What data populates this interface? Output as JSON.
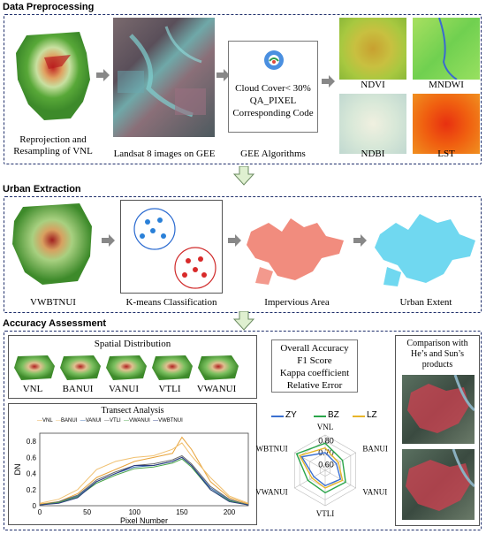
{
  "sections": {
    "preprocessing": "Data Preprocessing",
    "extraction": "Urban Extraction",
    "accuracy": "Accuracy Assessment"
  },
  "preprocessing": {
    "vnl_caption_1": "Reprojection and",
    "vnl_caption_2": "Resampling of VNL",
    "landsat_caption": "Landsat 8 images on GEE",
    "gee_caption": "GEE Algorithms",
    "gee_lines": [
      "Cloud Cover< 30%",
      "QA_PIXEL",
      "Corresponding Code"
    ],
    "indices": [
      "NDVI",
      "MNDWI",
      "NDBI",
      "LST"
    ]
  },
  "extraction": {
    "captions": [
      "VWBTNUI",
      "K-means Classification",
      "Impervious Area",
      "Urban Extent"
    ]
  },
  "accuracy": {
    "spatial_title": "Spatial Distribution",
    "spatial_labels": [
      "VNL",
      "BANUI",
      "VANUI",
      "VTLI",
      "VWANUI"
    ],
    "metrics": [
      "Overall  Accuracy",
      "F1 Score",
      "Kappa coefficient",
      "Relative Error"
    ],
    "comparison_title": [
      "Comparison with",
      "He’s and Sun’s",
      "products"
    ],
    "transect": {
      "title": "Transect Analysis",
      "ylabel": "DN",
      "xlabel": "Pixel Number",
      "legend": [
        "VNL",
        "BANUI",
        "VANUI",
        "VTLI",
        "VWANUI",
        "VWBTNUI"
      ],
      "xticks": [
        "0",
        "50",
        "100",
        "150",
        "200"
      ],
      "yticks": [
        "0",
        "0.2",
        "0.4",
        "0.6",
        "0.8"
      ]
    },
    "radar": {
      "legend": [
        "ZY",
        "BZ",
        "LZ"
      ],
      "axes": [
        "VNL",
        "BANUI",
        "VANUI",
        "VTLI",
        "VWANUI",
        "VWBTNUI"
      ],
      "rings": [
        "0.80",
        "0.70",
        "0.60"
      ]
    }
  },
  "chart_data": [
    {
      "type": "line",
      "title": "Transect Analysis",
      "xlabel": "Pixel Number",
      "ylabel": "DN",
      "xlim": [
        0,
        220
      ],
      "ylim": [
        0,
        0.9
      ],
      "x": [
        0,
        20,
        40,
        60,
        80,
        100,
        120,
        140,
        150,
        160,
        180,
        200,
        220
      ],
      "series": [
        {
          "name": "VNL",
          "values": [
            0.02,
            0.05,
            0.15,
            0.35,
            0.45,
            0.55,
            0.6,
            0.65,
            0.85,
            0.7,
            0.3,
            0.1,
            0.02
          ]
        },
        {
          "name": "BANUI",
          "values": [
            0.03,
            0.08,
            0.2,
            0.45,
            0.55,
            0.6,
            0.62,
            0.7,
            0.78,
            0.62,
            0.35,
            0.12,
            0.03
          ]
        },
        {
          "name": "VANUI",
          "values": [
            0.01,
            0.04,
            0.12,
            0.3,
            0.4,
            0.48,
            0.5,
            0.55,
            0.6,
            0.5,
            0.22,
            0.07,
            0.01
          ]
        },
        {
          "name": "VTLI",
          "values": [
            0.01,
            0.05,
            0.13,
            0.32,
            0.42,
            0.5,
            0.52,
            0.57,
            0.62,
            0.52,
            0.24,
            0.08,
            0.01
          ]
        },
        {
          "name": "VWANUI",
          "values": [
            0.01,
            0.04,
            0.11,
            0.28,
            0.38,
            0.46,
            0.48,
            0.53,
            0.58,
            0.48,
            0.2,
            0.06,
            0.01
          ]
        },
        {
          "name": "VWBTNUI",
          "values": [
            0.01,
            0.03,
            0.1,
            0.3,
            0.4,
            0.5,
            0.5,
            0.55,
            0.6,
            0.5,
            0.2,
            0.05,
            0.01
          ]
        }
      ],
      "colors": [
        "#e8a33a",
        "#f0c070",
        "#3a6fb5",
        "#6a6a6a",
        "#4aa54a",
        "#2a3a80"
      ]
    },
    {
      "type": "radar",
      "axes": [
        "VNL",
        "BANUI",
        "VANUI",
        "VTLI",
        "VWANUI",
        "VWBTNUI"
      ],
      "rmin": 0.55,
      "rmax": 0.85,
      "rings": [
        0.6,
        0.7,
        0.8
      ],
      "series": [
        {
          "name": "ZY",
          "values": [
            0.7,
            0.66,
            0.7,
            0.68,
            0.66,
            0.78
          ],
          "color": "#3a6fd0"
        },
        {
          "name": "BZ",
          "values": [
            0.78,
            0.72,
            0.75,
            0.74,
            0.72,
            0.83
          ],
          "color": "#2aa54a"
        },
        {
          "name": "LZ",
          "values": [
            0.74,
            0.68,
            0.72,
            0.7,
            0.68,
            0.8
          ],
          "color": "#e8b52a"
        }
      ]
    }
  ]
}
